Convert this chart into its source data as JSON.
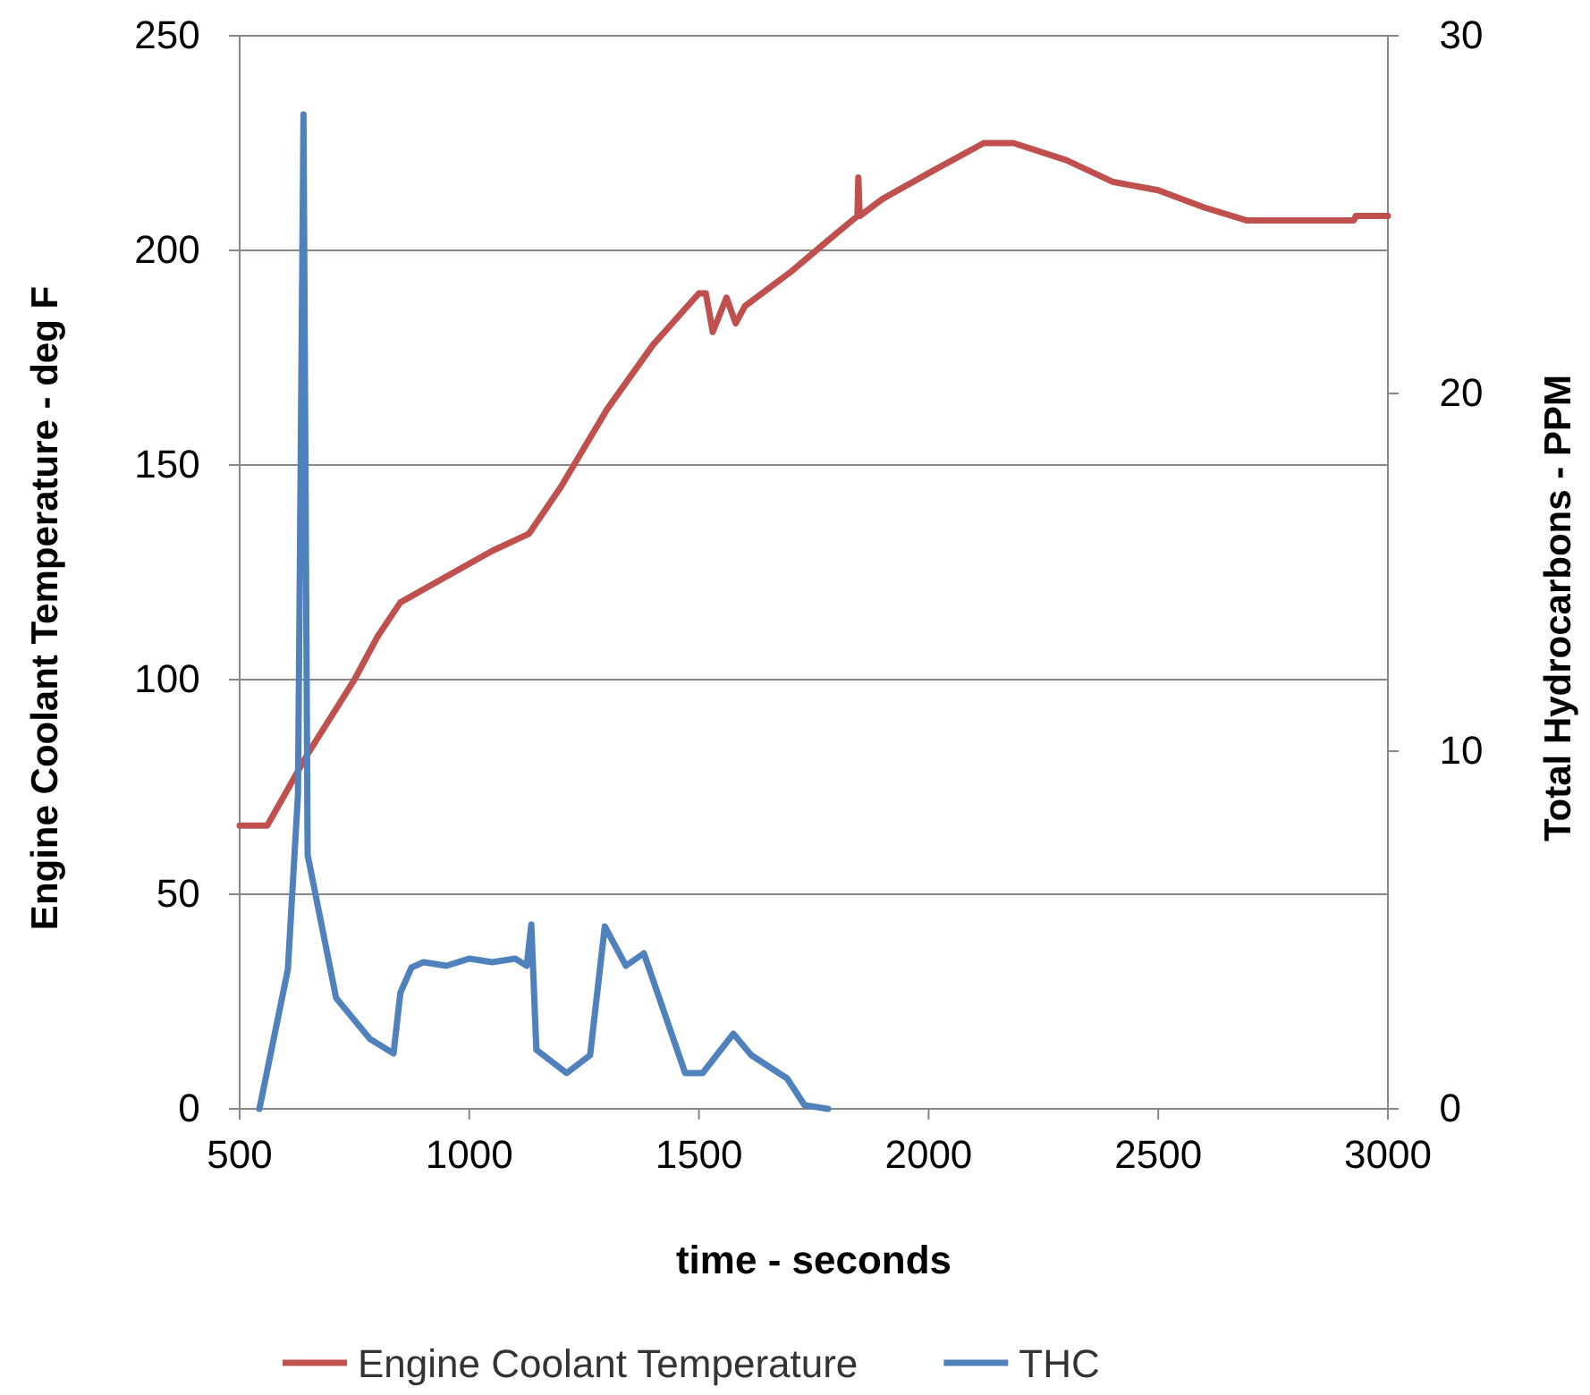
{
  "chart_data": {
    "type": "line",
    "xlabel": "time - seconds",
    "ylabel": "Engine Coolant Temperature - deg F",
    "y2label": "Total Hydrocarbons - PPM",
    "xlim": [
      500,
      3000
    ],
    "xticks": [
      500,
      1000,
      1500,
      2000,
      2500,
      3000
    ],
    "ylim": [
      0,
      250
    ],
    "yticks": [
      0,
      50,
      100,
      150,
      200,
      250
    ],
    "y2lim": [
      0,
      30
    ],
    "y2ticks": [
      0,
      10,
      20,
      30
    ],
    "grid": "y",
    "legend": "bottom",
    "line_style": "solid",
    "marker": "none",
    "series": [
      {
        "name": "Engine Coolant Temperature",
        "color": "#c0504d",
        "x": [
          500,
          560,
          650,
          750,
          800,
          850,
          950,
          1050,
          1130,
          1200,
          1300,
          1400,
          1500,
          1515,
          1530,
          1560,
          1580,
          1600,
          1700,
          1800,
          1845,
          1847,
          1850,
          1900,
          2000,
          2120,
          2185,
          2300,
          2400,
          2500,
          2600,
          2692,
          2926,
          2930,
          3000
        ],
        "values": [
          66,
          66,
          83,
          100,
          110,
          118,
          124,
          130,
          134,
          145,
          163,
          178,
          190,
          190,
          181,
          189,
          183,
          187,
          195,
          204,
          208,
          217,
          208,
          212,
          218,
          225,
          225,
          221,
          216,
          214,
          210,
          207,
          207,
          208,
          208
        ]
      },
      {
        "name": "THC",
        "color": "#4f81bd",
        "axis": "y2",
        "x": [
          543,
          605,
          627,
          639,
          648,
          710,
          784,
          835,
          850,
          874,
          900,
          950,
          1000,
          1050,
          1100,
          1125,
          1135,
          1146,
          1212,
          1263,
          1295,
          1341,
          1380,
          1470,
          1508,
          1575,
          1614,
          1692,
          1730,
          1781
        ],
        "values": [
          0,
          3.9,
          8.8,
          27.8,
          7.1,
          3.1,
          1.95,
          1.55,
          3.25,
          3.95,
          4.1,
          4.0,
          4.2,
          4.1,
          4.2,
          4.0,
          5.15,
          1.65,
          1.0,
          1.5,
          5.1,
          4.0,
          4.35,
          1.0,
          1.0,
          2.1,
          1.5,
          0.85,
          0.1,
          0
        ]
      }
    ]
  }
}
